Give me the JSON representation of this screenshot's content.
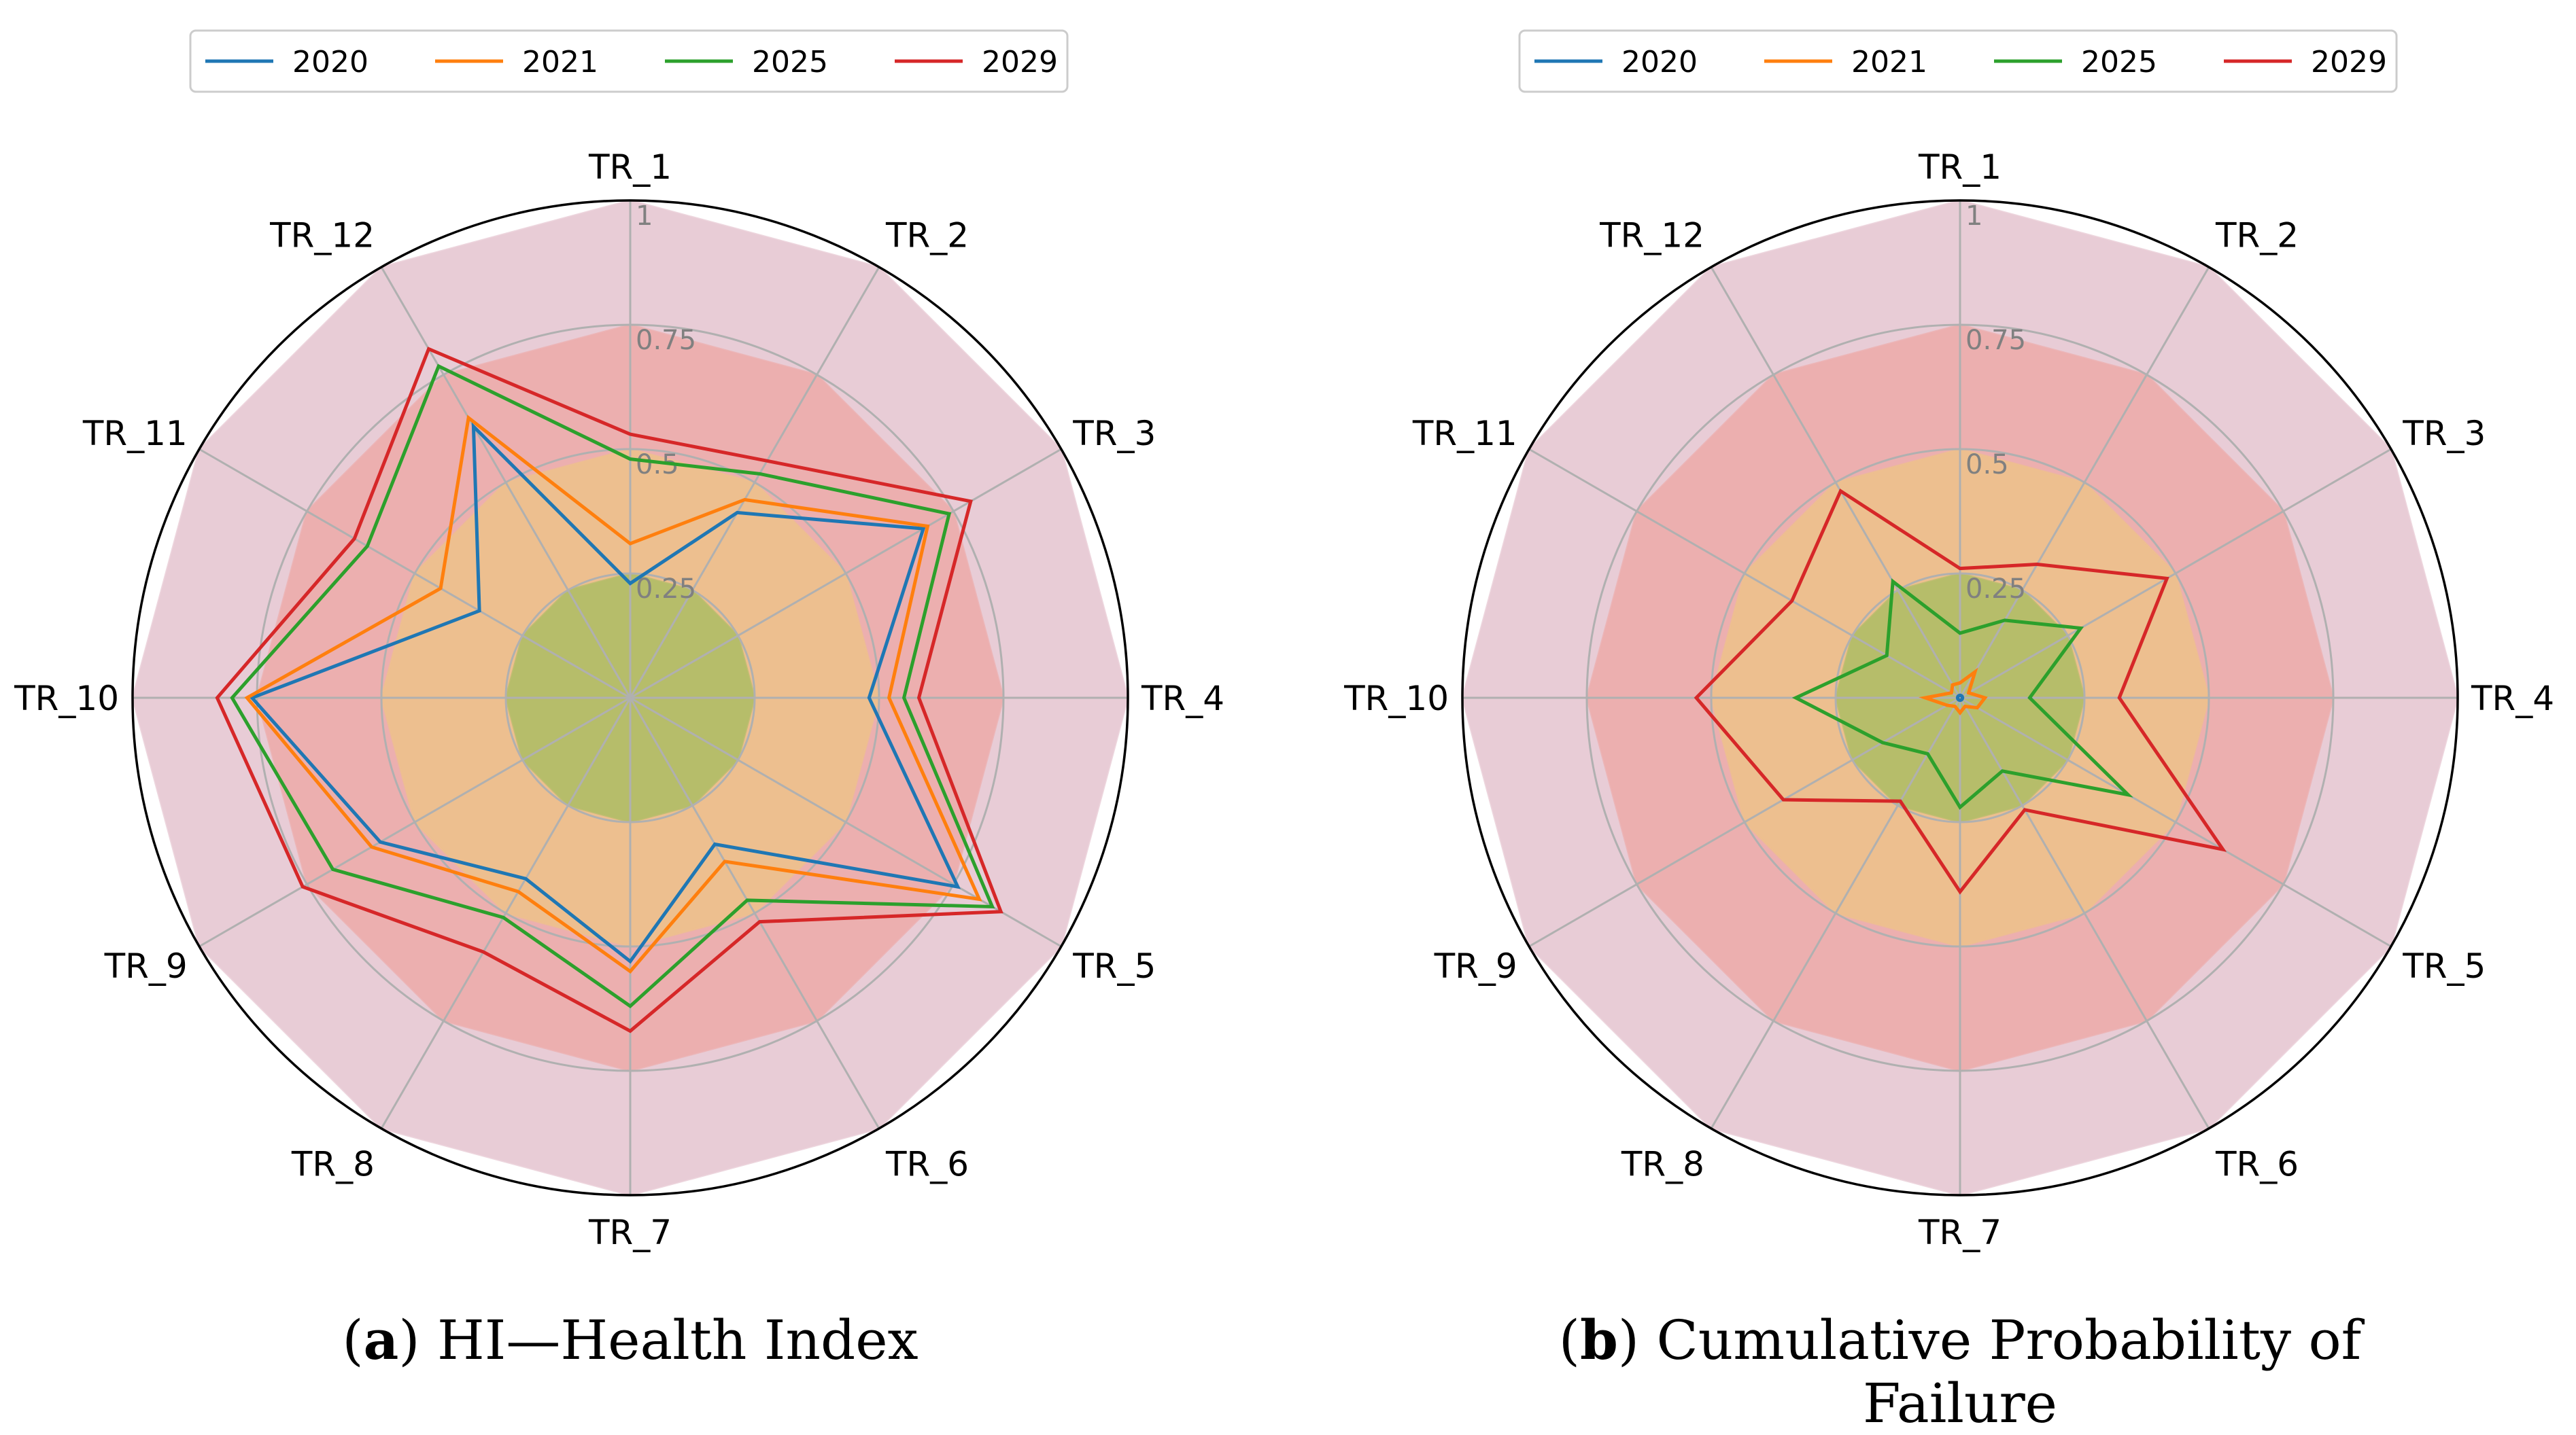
{
  "chart_data": [
    {
      "type": "radar",
      "panel_letter": "a",
      "panel_title": "HI—Health Index",
      "categories": [
        "TR_1",
        "TR_2",
        "TR_3",
        "TR_4",
        "TR_5",
        "TR_6",
        "TR_7",
        "TR_8",
        "TR_9",
        "TR_10",
        "TR_11",
        "TR_12"
      ],
      "rlim": [
        0,
        1
      ],
      "rticks": [
        0.25,
        0.5,
        0.75,
        1
      ],
      "rtick_labels": [
        "0.25",
        "0.5",
        "0.75",
        "1"
      ],
      "bands": [
        {
          "from": 0,
          "to": 0.25,
          "color": "#b6bd6a"
        },
        {
          "from": 0.25,
          "to": 0.5,
          "color": "#edbf8f"
        },
        {
          "from": 0.5,
          "to": 0.75,
          "color": "#ecafaf"
        },
        {
          "from": 0.75,
          "to": 1.0,
          "color": "#e8ccd6"
        }
      ],
      "legend_position": "top-center",
      "series": [
        {
          "name": "2020",
          "color": "#1f77b4",
          "values": [
            0.23,
            0.43,
            0.68,
            0.48,
            0.76,
            0.34,
            0.53,
            0.42,
            0.58,
            0.76,
            0.35,
            0.63
          ]
        },
        {
          "name": "2021",
          "color": "#ff7f0e",
          "values": [
            0.31,
            0.46,
            0.69,
            0.52,
            0.81,
            0.38,
            0.55,
            0.45,
            0.6,
            0.77,
            0.44,
            0.65
          ]
        },
        {
          "name": "2025",
          "color": "#2ca02c",
          "values": [
            0.48,
            0.52,
            0.74,
            0.55,
            0.84,
            0.47,
            0.62,
            0.51,
            0.69,
            0.8,
            0.61,
            0.77
          ]
        },
        {
          "name": "2029",
          "color": "#d62728",
          "values": [
            0.53,
            0.55,
            0.79,
            0.58,
            0.86,
            0.52,
            0.67,
            0.59,
            0.76,
            0.83,
            0.64,
            0.81
          ]
        }
      ]
    },
    {
      "type": "radar",
      "panel_letter": "b",
      "panel_title": "Cumulative Probability of Failure",
      "categories": [
        "TR_1",
        "TR_2",
        "TR_3",
        "TR_4",
        "TR_5",
        "TR_6",
        "TR_7",
        "TR_8",
        "TR_9",
        "TR_10",
        "TR_11",
        "TR_12"
      ],
      "rlim": [
        0,
        1
      ],
      "rticks": [
        0.25,
        0.5,
        0.75,
        1
      ],
      "rtick_labels": [
        "0.25",
        "0.5",
        "0.75",
        "1"
      ],
      "bands": [
        {
          "from": 0,
          "to": 0.25,
          "color": "#b6bd6a"
        },
        {
          "from": 0.25,
          "to": 0.5,
          "color": "#edbf8f"
        },
        {
          "from": 0.5,
          "to": 0.75,
          "color": "#ecafaf"
        },
        {
          "from": 0.75,
          "to": 1.0,
          "color": "#e8ccd6"
        }
      ],
      "legend_position": "top-center",
      "series": [
        {
          "name": "2020",
          "color": "#1f77b4",
          "values": [
            0.005,
            0.005,
            0.005,
            0.005,
            0.005,
            0.005,
            0.005,
            0.005,
            0.005,
            0.005,
            0.005,
            0.005
          ]
        },
        {
          "name": "2021",
          "color": "#ff7f0e",
          "values": [
            0.03,
            0.06,
            0.02,
            0.05,
            0.04,
            0.02,
            0.03,
            0.02,
            0.03,
            0.07,
            0.02,
            0.03
          ]
        },
        {
          "name": "2025",
          "color": "#2ca02c",
          "values": [
            0.13,
            0.18,
            0.28,
            0.14,
            0.39,
            0.17,
            0.22,
            0.13,
            0.18,
            0.33,
            0.17,
            0.27
          ]
        },
        {
          "name": "2029",
          "color": "#d62728",
          "values": [
            0.26,
            0.31,
            0.48,
            0.32,
            0.61,
            0.26,
            0.39,
            0.24,
            0.41,
            0.53,
            0.39,
            0.48
          ]
        }
      ]
    }
  ]
}
